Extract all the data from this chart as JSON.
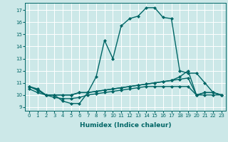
{
  "title": "",
  "xlabel": "Humidex (Indice chaleur)",
  "background_color": "#cce8e8",
  "grid_color": "#ffffff",
  "line_color": "#006666",
  "xlim": [
    -0.5,
    23.5
  ],
  "ylim": [
    8.7,
    17.6
  ],
  "xticks": [
    0,
    1,
    2,
    3,
    4,
    5,
    6,
    7,
    8,
    9,
    10,
    11,
    12,
    13,
    14,
    15,
    16,
    17,
    18,
    19,
    20,
    21,
    22,
    23
  ],
  "yticks": [
    9,
    10,
    11,
    12,
    13,
    14,
    15,
    16,
    17
  ],
  "series": [
    [
      10.7,
      10.5,
      10.0,
      10.0,
      9.5,
      9.3,
      9.3,
      10.2,
      11.5,
      14.5,
      13.0,
      15.7,
      16.3,
      16.5,
      17.2,
      17.2,
      16.4,
      16.3,
      12.0,
      11.8,
      11.8,
      11.0,
      10.2,
      10.0
    ],
    [
      10.7,
      10.4,
      10.0,
      10.0,
      10.0,
      10.0,
      10.2,
      10.2,
      10.3,
      10.4,
      10.5,
      10.6,
      10.7,
      10.8,
      10.9,
      11.0,
      11.1,
      11.2,
      11.5,
      12.0,
      10.0,
      10.2,
      10.2,
      10.0
    ],
    [
      10.7,
      10.4,
      10.0,
      10.0,
      10.0,
      10.0,
      10.2,
      10.2,
      10.3,
      10.4,
      10.5,
      10.6,
      10.7,
      10.8,
      10.9,
      11.0,
      11.1,
      11.2,
      11.3,
      11.4,
      10.0,
      10.2,
      10.2,
      10.0
    ],
    [
      10.5,
      10.2,
      10.0,
      9.8,
      9.7,
      9.7,
      9.8,
      10.0,
      10.1,
      10.2,
      10.3,
      10.4,
      10.5,
      10.6,
      10.7,
      10.7,
      10.7,
      10.7,
      10.7,
      10.7,
      10.0,
      10.0,
      10.0,
      10.0
    ]
  ],
  "marker": "D",
  "marker_size": 2.0,
  "line_width": 1.0,
  "tick_fontsize": 5.0,
  "xlabel_fontsize": 6.5
}
